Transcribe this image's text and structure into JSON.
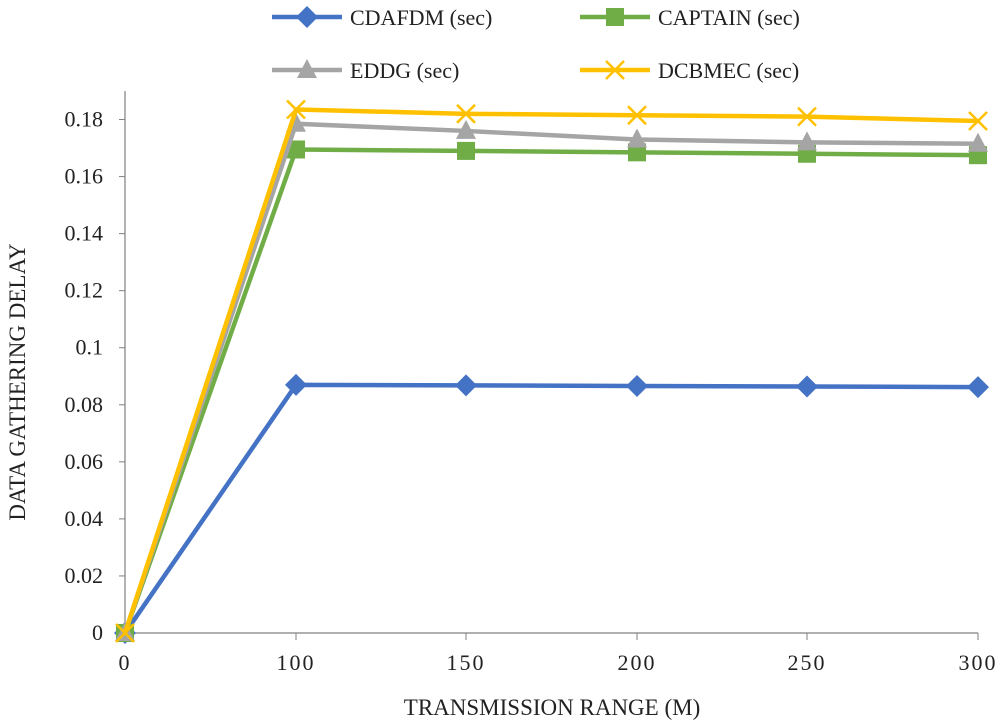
{
  "chart_data": {
    "type": "line",
    "title": "",
    "xlabel": "TRANSMISSION RANGE (M)",
    "ylabel": "DATA GATHERING DELAY",
    "categories": [
      "0",
      "100",
      "150",
      "200",
      "250",
      "300"
    ],
    "ylim": [
      0,
      0.19
    ],
    "yticks": [
      0,
      0.02,
      0.04,
      0.06,
      0.08,
      0.1,
      0.12,
      0.14,
      0.16,
      0.18
    ],
    "ytick_labels": [
      "0",
      "0.02",
      "0.04",
      "0.06",
      "0.08",
      "0.1",
      "0.12",
      "0.14",
      "0.16",
      "0.18"
    ],
    "grid": false,
    "legend_position": "top",
    "series": [
      {
        "name": "CDAFDM (sec)",
        "color": "#4472C4",
        "marker": "diamond",
        "values": [
          0,
          0.087,
          0.0868,
          0.0866,
          0.0864,
          0.0862
        ]
      },
      {
        "name": "CAPTAIN (sec)",
        "color": "#70AD47",
        "marker": "square",
        "values": [
          0,
          0.1695,
          0.169,
          0.1685,
          0.168,
          0.1675
        ]
      },
      {
        "name": "EDDG (sec)",
        "color": "#A5A5A5",
        "marker": "triangle",
        "values": [
          0,
          0.1785,
          0.176,
          0.173,
          0.172,
          0.1715
        ]
      },
      {
        "name": "DCBMEC (sec)",
        "color": "#FFC000",
        "marker": "x",
        "values": [
          0,
          0.1835,
          0.182,
          0.1815,
          0.181,
          0.1795
        ]
      }
    ]
  }
}
